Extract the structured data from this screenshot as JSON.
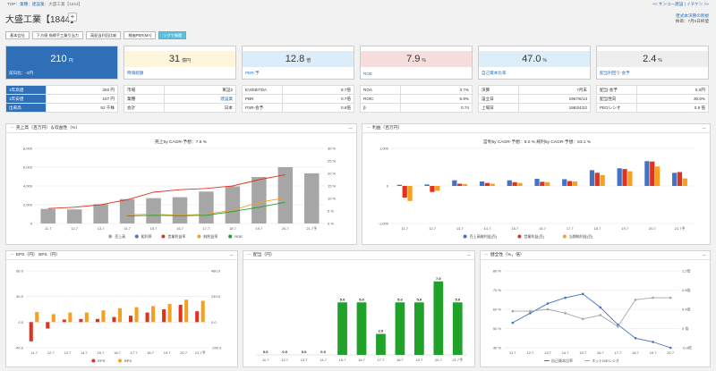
{
  "breadcrumb": {
    "home": "TOP",
    "sep1": "：",
    "industry": "業種",
    "sep2": "：",
    "sector": "建設業",
    "sep3": "：",
    "current": "大盛工業【1844】"
  },
  "toplinks": "<< サンユー建設 | イチケン >>",
  "title": "大盛工業【1844】",
  "add_button": "+",
  "notes": {
    "link": "匿式本決算の新規",
    "date": "株価：7月6日終値"
  },
  "tabs": [
    {
      "label": "基本会社"
    },
    {
      "label": "下方値 指標手工業引当力"
    },
    {
      "label": "高配当利回比較"
    },
    {
      "label": "株価PER(MA)"
    },
    {
      "label": "ソグで新閲"
    }
  ],
  "kpis": [
    {
      "value": "210",
      "unit": "円",
      "label": "前日比：-2円",
      "bg": "#2f6fb7",
      "fg": "#ffffff"
    },
    {
      "value": "31",
      "unit": "億円",
      "label": "時価総額",
      "bg": "#fdf5dc",
      "fg": "#333333"
    },
    {
      "value": "12.8",
      "unit": "倍",
      "label": "PER-予",
      "bg": "#dcecf8",
      "fg": "#333333"
    },
    {
      "value": "7.9",
      "unit": "%",
      "label": "ROE",
      "bg": "#f7dede",
      "fg": "#333333"
    },
    {
      "value": "47.0",
      "unit": "%",
      "label": "自己資本比率",
      "bg": "#ddeef8",
      "fg": "#333333"
    },
    {
      "value": "2.4",
      "unit": "%",
      "label": "配当利回り-会予",
      "bg": "#eeeeee",
      "fg": "#333333"
    }
  ],
  "subtables": [
    [
      [
        "1年高値",
        "250 円"
      ],
      [
        "1年安値",
        "167 円"
      ],
      [
        "出来高",
        "52 千株"
      ]
    ],
    [
      [
        "市場",
        "東証2"
      ],
      [
        "業種",
        "建設業"
      ],
      [
        "会計",
        "日本"
      ]
    ],
    [
      [
        "EV/EBITDA",
        "8.7倍"
      ],
      [
        "PBR",
        "0.7倍"
      ],
      [
        "PSR-会予",
        "0.6倍"
      ]
    ],
    [
      [
        "ROA",
        "3.7%"
      ],
      [
        "ROIC",
        "5.9%"
      ],
      [
        "β",
        "0.74"
      ]
    ],
    [
      [
        "決算",
        "7月末"
      ],
      [
        "設立日",
        "1967/6/13"
      ],
      [
        "上場日",
        "1993/4/22"
      ]
    ],
    [
      [
        "配当-会予",
        "5.0円"
      ],
      [
        "配当性向",
        "30.6%"
      ],
      [
        "PEGレシオ",
        "0.9 倍"
      ]
    ]
  ],
  "colors": {
    "blue": "#4472c4",
    "red": "#e0331d",
    "orange": "#f5a020",
    "green": "#1fa12a",
    "gray": "#a6a6a6",
    "bluelbl": "#2a6fb8"
  },
  "panels": {
    "sales": {
      "title": "売上高（百万円）＆収益性（%）",
      "subtitle": "売上5y CAGR-予想：7.6 %",
      "toggle": "ー",
      "hide": "ー"
    },
    "profit": {
      "title": "利益（百万円）",
      "subtitle": "営利5y CAGR-予想：9.0 %  純利5y CAGR-予想：63.1 %",
      "toggle": "ー",
      "hide": "ー"
    },
    "eps": {
      "title": "EPS（円） BPS（円）",
      "toggle": "ー",
      "hide": "ー"
    },
    "div": {
      "title": "配当（円）",
      "toggle": "ー",
      "hide": "ー"
    },
    "health": {
      "title": "健全性（%，倍）",
      "toggle": "ー",
      "hide": "ー"
    }
  },
  "chart_data": [
    {
      "type": "bar",
      "name": "sales",
      "categories": [
        "11.7",
        "12.7",
        "13.7",
        "14.7",
        "15.7",
        "16.7",
        "17.7",
        "18.7",
        "19.7",
        "20.7",
        "21.7予"
      ],
      "ylim": [
        0,
        8000
      ],
      "y_ticks": [
        "0",
        "2,000",
        "4,000",
        "6,000",
        "8,000"
      ],
      "y2lim": [
        0,
        30
      ],
      "y2_ticks": [
        "0 %",
        "5 %",
        "10 %",
        "15 %",
        "20 %",
        "25 %",
        "30 %"
      ],
      "series": [
        {
          "name": "売上高",
          "kind": "bar",
          "axis": "left",
          "values": [
            1550,
            1500,
            2050,
            2600,
            2700,
            2800,
            3400,
            3950,
            4950,
            6000,
            5350
          ]
        },
        {
          "name": "粗利率",
          "kind": "line",
          "axis": "right",
          "values": [
            null,
            null,
            null,
            null,
            null,
            null,
            null,
            null,
            null,
            null,
            null
          ]
        },
        {
          "name": "営業利益率",
          "kind": "line",
          "axis": "right",
          "values": [
            6.0,
            6.5,
            7.5,
            9.5,
            12.5,
            13.5,
            14.0,
            15.0,
            17.5,
            19.5,
            null
          ]
        },
        {
          "name": "純利益率",
          "kind": "line",
          "axis": "right",
          "values": [
            null,
            null,
            null,
            3.5,
            3.7,
            3.3,
            3.7,
            5.3,
            8.5,
            10.2,
            null
          ]
        },
        {
          "name": "ROE",
          "kind": "line",
          "axis": "right",
          "values": [
            null,
            null,
            null,
            3.0,
            3.3,
            3.1,
            3.3,
            4.8,
            6.5,
            8.5,
            null
          ]
        }
      ]
    },
    {
      "type": "bar",
      "name": "profit",
      "categories": [
        "11.7",
        "12.7",
        "13.7",
        "14.7",
        "15.7",
        "16.7",
        "17.7",
        "18.7",
        "19.7",
        "20.7",
        "21.7予"
      ],
      "ylim": [
        -1000,
        1000
      ],
      "y_ticks": [
        "-1,000",
        "0",
        "1,000"
      ],
      "series": [
        {
          "name": "売上高総利益(百)",
          "values": [
            30,
            40,
            150,
            120,
            150,
            190,
            180,
            420,
            470,
            660,
            350
          ]
        },
        {
          "name": "営業利益(百)",
          "values": [
            -310,
            -160,
            60,
            80,
            100,
            110,
            130,
            350,
            450,
            650,
            370
          ]
        },
        {
          "name": "当期純利益(百)",
          "values": [
            -400,
            -130,
            50,
            60,
            80,
            100,
            120,
            290,
            390,
            520,
            200
          ]
        }
      ]
    },
    {
      "type": "bar",
      "name": "eps_bps",
      "categories": [
        "11.7",
        "12.7",
        "13.7",
        "14.7",
        "15.7",
        "16.7",
        "17.7",
        "18.7",
        "19.7",
        "20.7",
        "21.7予"
      ],
      "ylim": [
        -40,
        80
      ],
      "y_ticks": [
        "-40.0",
        "0.0",
        "40.0",
        "80.0"
      ],
      "y2lim": [
        -240,
        480
      ],
      "y2_ticks": [
        "-240.0",
        "0.0",
        "240.0",
        "480.0"
      ],
      "series": [
        {
          "name": "EPS",
          "axis": "left",
          "values": [
            -30,
            -10,
            4,
            5,
            5,
            8,
            10,
            15,
            20,
            27,
            17
          ]
        },
        {
          "name": "BPS",
          "axis": "right",
          "values": [
            95,
            75,
            90,
            90,
            110,
            130,
            140,
            150,
            170,
            210,
            200
          ]
        }
      ]
    },
    {
      "type": "bar",
      "name": "dividend",
      "categories": [
        "11.7",
        "12.7",
        "13.7",
        "14.7",
        "15.7",
        "16.7",
        "17.7",
        "18.7",
        "19.7",
        "20.7",
        "21.7予"
      ],
      "ylim": [
        0,
        8
      ],
      "data_labels": [
        "0.0",
        "0.0",
        "0.0",
        "0.0",
        "5.0",
        "5.0",
        "2.0",
        "5.0",
        "5.0",
        "7.0",
        "5.0"
      ],
      "series": [
        {
          "name": "配当",
          "values": [
            0,
            0,
            0,
            0,
            5,
            5,
            2,
            5,
            5,
            7,
            5
          ]
        }
      ]
    },
    {
      "type": "line",
      "name": "health",
      "categories": [
        "11.7",
        "12.7",
        "13.7",
        "14.7",
        "15.7",
        "16.7",
        "17.7",
        "18.7",
        "19.7",
        "20.7"
      ],
      "ylim": [
        40,
        80
      ],
      "y_ticks": [
        "40 %",
        "50 %",
        "60 %",
        "70 %",
        "80 %"
      ],
      "y2_ticks": [
        "-0.4倍",
        "0 倍",
        "0.4倍",
        "0.8倍",
        "1.2倍"
      ],
      "series": [
        {
          "name": "自己資本比率",
          "values": [
            53,
            58,
            63,
            66,
            68,
            61,
            52,
            45,
            43,
            40
          ]
        },
        {
          "name": "ネットD/Eレシオ",
          "values": [
            59,
            59,
            60,
            58,
            55,
            57,
            51,
            65,
            66,
            66
          ]
        }
      ]
    }
  ]
}
